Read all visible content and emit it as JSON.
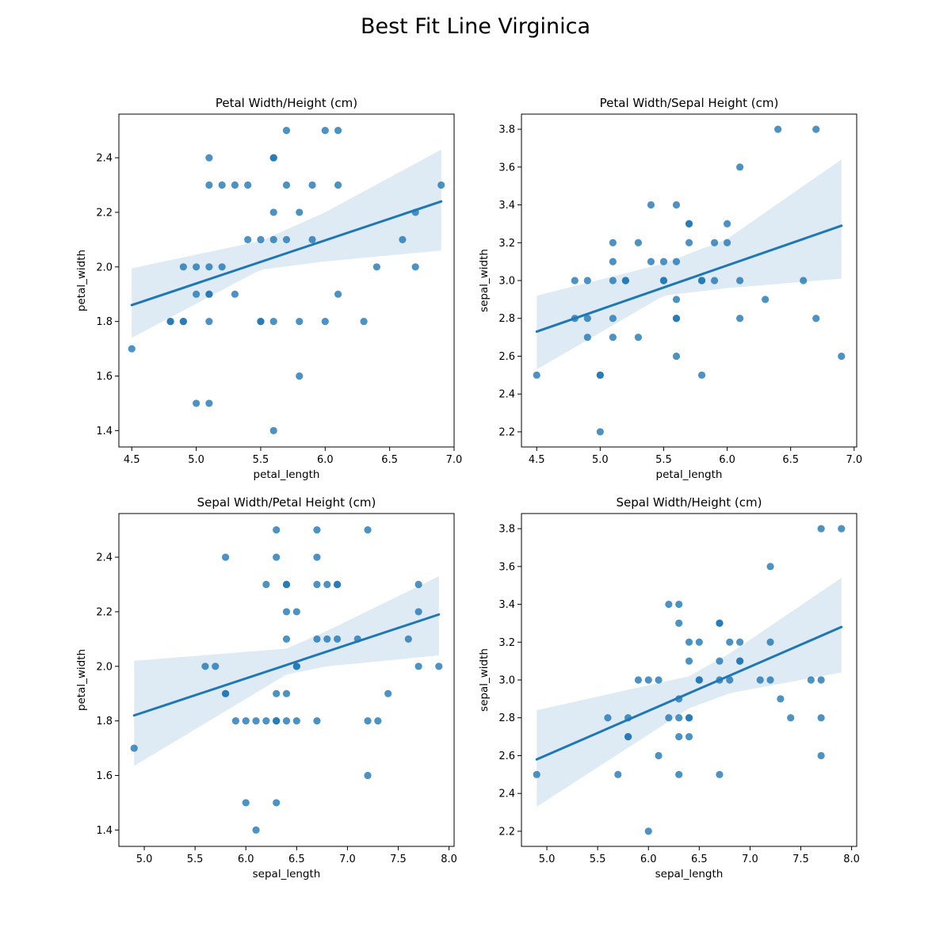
{
  "figure_title": "Best Fit Line Virginica",
  "colors": {
    "points": "#1f77b4",
    "band": "#1f77b4"
  },
  "chart_data": [
    {
      "type": "scatter",
      "title": "Petal Width/Height (cm)",
      "xlabel": "petal_length",
      "ylabel": "petal_width",
      "xlim": [
        4.4,
        7.0
      ],
      "ylim": [
        1.34,
        2.56
      ],
      "xticks": [
        4.5,
        5.0,
        5.5,
        6.0,
        6.5,
        7.0
      ],
      "xtick_labels": [
        "4.5",
        "5.0",
        "5.5",
        "6.0",
        "6.5",
        "7.0"
      ],
      "yticks": [
        1.4,
        1.6,
        1.8,
        2.0,
        2.2,
        2.4
      ],
      "ytick_labels": [
        "1.4",
        "1.6",
        "1.8",
        "2.0",
        "2.2",
        "2.4"
      ],
      "x": [
        4.5,
        4.8,
        4.8,
        4.9,
        4.9,
        4.9,
        5.0,
        5.0,
        5.0,
        5.1,
        5.1,
        5.1,
        5.1,
        5.1,
        5.1,
        5.1,
        5.2,
        5.2,
        5.3,
        5.3,
        5.4,
        5.4,
        5.5,
        5.5,
        5.5,
        5.6,
        5.6,
        5.6,
        5.6,
        5.6,
        5.6,
        5.7,
        5.7,
        5.7,
        5.8,
        5.8,
        5.8,
        5.9,
        5.9,
        6.0,
        6.0,
        6.1,
        6.1,
        6.1,
        6.3,
        6.4,
        6.6,
        6.7,
        6.7,
        6.9
      ],
      "y": [
        1.7,
        1.8,
        1.8,
        1.8,
        1.8,
        2.0,
        1.5,
        1.9,
        2.0,
        1.5,
        1.8,
        1.9,
        1.9,
        2.0,
        2.3,
        2.4,
        2.0,
        2.3,
        1.9,
        2.3,
        2.1,
        2.3,
        1.8,
        1.8,
        2.1,
        1.4,
        1.8,
        2.1,
        2.2,
        2.4,
        2.4,
        2.1,
        2.3,
        2.5,
        1.6,
        1.8,
        2.2,
        2.1,
        2.3,
        1.8,
        2.5,
        1.9,
        2.3,
        2.5,
        1.8,
        2.0,
        2.1,
        2.0,
        2.2,
        2.3
      ],
      "fit_line": {
        "x": [
          4.5,
          6.9
        ],
        "y": [
          1.86,
          2.24
        ]
      },
      "ci_band": {
        "x": [
          4.5,
          5.5,
          6.0,
          6.9
        ],
        "lower": [
          1.74,
          1.99,
          2.02,
          2.06
        ],
        "upper": [
          1.995,
          2.095,
          2.2,
          2.43
        ]
      }
    },
    {
      "type": "scatter",
      "title": "Petal Width/Sepal Height (cm)",
      "xlabel": "petal_length",
      "ylabel": "sepal_width",
      "xlim": [
        4.38,
        7.02
      ],
      "ylim": [
        2.12,
        3.88
      ],
      "xticks": [
        4.5,
        5.0,
        5.5,
        6.0,
        6.5,
        7.0
      ],
      "xtick_labels": [
        "4.5",
        "5.0",
        "5.5",
        "6.0",
        "6.5",
        "7.0"
      ],
      "yticks": [
        2.2,
        2.4,
        2.6,
        2.8,
        3.0,
        3.2,
        3.4,
        3.6,
        3.8
      ],
      "ytick_labels": [
        "2.2",
        "2.4",
        "2.6",
        "2.8",
        "3.0",
        "3.2",
        "3.4",
        "3.6",
        "3.8"
      ],
      "x": [
        4.5,
        4.8,
        4.8,
        4.9,
        4.9,
        4.9,
        5.0,
        5.0,
        5.0,
        5.1,
        5.1,
        5.1,
        5.1,
        5.1,
        5.2,
        5.2,
        5.3,
        5.3,
        5.4,
        5.4,
        5.5,
        5.5,
        5.5,
        5.6,
        5.6,
        5.6,
        5.6,
        5.6,
        5.6,
        5.7,
        5.7,
        5.7,
        5.8,
        5.8,
        5.8,
        5.9,
        5.9,
        6.0,
        6.0,
        6.1,
        6.1,
        6.1,
        6.3,
        6.4,
        6.6,
        6.7,
        6.7,
        6.9
      ],
      "y": [
        2.5,
        2.8,
        3.0,
        2.7,
        2.8,
        3.0,
        2.2,
        2.5,
        2.5,
        2.7,
        2.8,
        3.0,
        3.1,
        3.2,
        3.0,
        3.0,
        2.7,
        3.2,
        3.1,
        3.4,
        3.0,
        3.0,
        3.1,
        2.6,
        2.8,
        2.8,
        2.9,
        3.1,
        3.4,
        3.2,
        3.3,
        3.3,
        2.5,
        3.0,
        3.0,
        3.0,
        3.2,
        3.2,
        3.3,
        2.8,
        3.0,
        3.6,
        2.9,
        3.8,
        3.0,
        2.8,
        3.8,
        2.6
      ],
      "fit_line": {
        "x": [
          4.5,
          6.9
        ],
        "y": [
          2.73,
          3.29
        ]
      },
      "ci_band": {
        "x": [
          4.5,
          5.5,
          6.0,
          6.9
        ],
        "lower": [
          2.53,
          2.92,
          2.96,
          3.01
        ],
        "upper": [
          2.92,
          3.09,
          3.22,
          3.64
        ]
      }
    },
    {
      "type": "scatter",
      "title": "Sepal Width/Petal Height (cm)",
      "xlabel": "sepal_length",
      "ylabel": "petal_width",
      "xlim": [
        4.75,
        8.05
      ],
      "ylim": [
        1.34,
        2.56
      ],
      "xticks": [
        5.0,
        5.5,
        6.0,
        6.5,
        7.0,
        7.5,
        8.0
      ],
      "xtick_labels": [
        "5.0",
        "5.5",
        "6.0",
        "6.5",
        "7.0",
        "7.5",
        "8.0"
      ],
      "yticks": [
        1.4,
        1.6,
        1.8,
        2.0,
        2.2,
        2.4
      ],
      "ytick_labels": [
        "1.4",
        "1.6",
        "1.8",
        "2.0",
        "2.2",
        "2.4"
      ],
      "x": [
        4.9,
        5.6,
        5.7,
        5.8,
        5.8,
        5.8,
        5.9,
        6.0,
        6.0,
        6.1,
        6.1,
        6.2,
        6.2,
        6.3,
        6.3,
        6.3,
        6.3,
        6.3,
        6.3,
        6.4,
        6.4,
        6.4,
        6.4,
        6.4,
        6.4,
        6.5,
        6.5,
        6.5,
        6.5,
        6.7,
        6.7,
        6.7,
        6.7,
        6.7,
        6.8,
        6.8,
        6.9,
        6.9,
        6.9,
        7.1,
        7.2,
        7.2,
        7.2,
        7.3,
        7.4,
        7.6,
        7.7,
        7.7,
        7.7,
        7.9
      ],
      "y": [
        1.7,
        2.0,
        2.0,
        1.9,
        1.9,
        2.4,
        1.8,
        1.5,
        1.8,
        1.4,
        1.8,
        1.8,
        2.3,
        1.5,
        1.8,
        1.8,
        1.9,
        2.4,
        2.5,
        1.8,
        1.9,
        2.1,
        2.2,
        2.3,
        2.3,
        1.8,
        2.0,
        2.0,
        2.2,
        1.8,
        2.1,
        2.3,
        2.4,
        2.5,
        2.1,
        2.3,
        2.1,
        2.3,
        2.3,
        2.1,
        1.6,
        1.8,
        2.5,
        1.8,
        1.9,
        2.1,
        2.0,
        2.2,
        2.3,
        2.0
      ],
      "fit_line": {
        "x": [
          4.9,
          7.9
        ],
        "y": [
          1.82,
          2.19
        ]
      },
      "ci_band": {
        "x": [
          4.9,
          6.4,
          6.8,
          7.9
        ],
        "lower": [
          1.635,
          1.97,
          2.0,
          2.04
        ],
        "upper": [
          2.02,
          2.065,
          2.13,
          2.33
        ]
      }
    },
    {
      "type": "scatter",
      "title": "Sepal Width/Height (cm)",
      "xlabel": "sepal_length",
      "ylabel": "sepal_width",
      "xlim": [
        4.75,
        8.05
      ],
      "ylim": [
        2.12,
        3.88
      ],
      "xticks": [
        5.0,
        5.5,
        6.0,
        6.5,
        7.0,
        7.5,
        8.0
      ],
      "xtick_labels": [
        "5.0",
        "5.5",
        "6.0",
        "6.5",
        "7.0",
        "7.5",
        "8.0"
      ],
      "yticks": [
        2.2,
        2.4,
        2.6,
        2.8,
        3.0,
        3.2,
        3.4,
        3.6,
        3.8
      ],
      "ytick_labels": [
        "2.2",
        "2.4",
        "2.6",
        "2.8",
        "3.0",
        "3.2",
        "3.4",
        "3.6",
        "3.8"
      ],
      "x": [
        4.9,
        5.6,
        5.7,
        5.8,
        5.8,
        5.8,
        5.9,
        6.0,
        6.0,
        6.1,
        6.1,
        6.2,
        6.2,
        6.3,
        6.3,
        6.3,
        6.3,
        6.3,
        6.3,
        6.4,
        6.4,
        6.4,
        6.4,
        6.4,
        6.5,
        6.5,
        6.5,
        6.7,
        6.7,
        6.7,
        6.7,
        6.7,
        6.8,
        6.8,
        6.9,
        6.9,
        6.9,
        7.1,
        7.2,
        7.2,
        7.2,
        7.3,
        7.4,
        7.6,
        7.7,
        7.7,
        7.7,
        7.7,
        7.9
      ],
      "y": [
        2.5,
        2.8,
        2.5,
        2.7,
        2.7,
        2.8,
        3.0,
        2.2,
        3.0,
        2.6,
        3.0,
        2.8,
        3.4,
        2.5,
        2.7,
        2.8,
        2.9,
        3.3,
        3.4,
        2.7,
        2.8,
        2.8,
        3.1,
        3.2,
        3.0,
        3.0,
        3.2,
        2.5,
        3.0,
        3.1,
        3.3,
        3.3,
        3.0,
        3.2,
        3.1,
        3.1,
        3.2,
        3.0,
        3.0,
        3.2,
        3.6,
        2.9,
        2.8,
        3.0,
        2.6,
        2.8,
        3.0,
        3.8,
        3.8
      ],
      "fit_line": {
        "x": [
          4.9,
          7.9
        ],
        "y": [
          2.58,
          3.28
        ]
      },
      "ci_band": {
        "x": [
          4.9,
          6.4,
          6.8,
          7.9
        ],
        "lower": [
          2.33,
          2.85,
          2.93,
          3.04
        ],
        "upper": [
          2.84,
          3.02,
          3.14,
          3.54
        ]
      }
    }
  ]
}
